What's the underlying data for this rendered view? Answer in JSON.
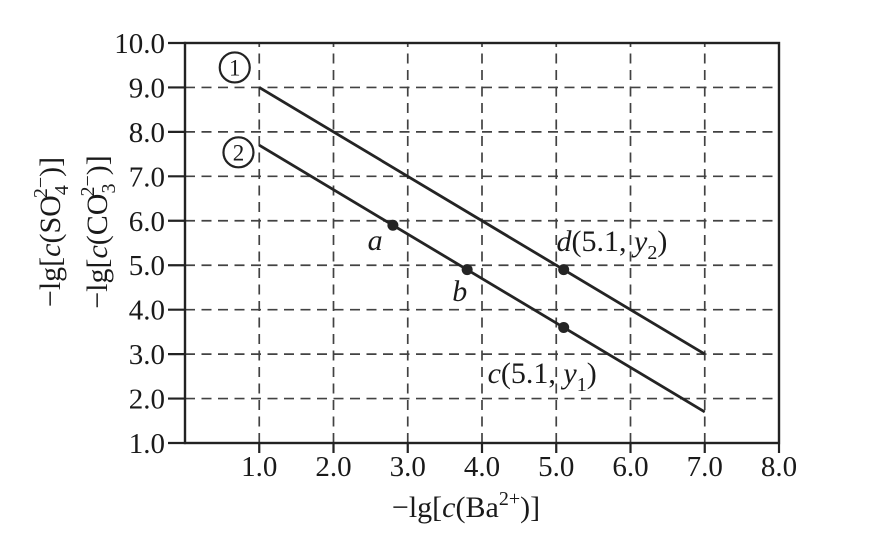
{
  "figure": {
    "background": "#ffffff",
    "ink_color": "#222222",
    "grid_color": "#424242"
  },
  "chart_data": {
    "type": "line",
    "title": "",
    "xlabel": "−lg[c(Ba²⁺)]",
    "xlabel_segments": [
      {
        "t": "−lg["
      },
      {
        "t": "c",
        "i": true
      },
      {
        "t": "(Ba"
      },
      {
        "t": "2+",
        "shift": "sup"
      },
      {
        "t": ")]"
      }
    ],
    "ylabels": [
      {
        "text": "−lg[c(SO₄²⁻)]",
        "segments": [
          {
            "t": "−lg["
          },
          {
            "t": "c",
            "i": true
          },
          {
            "t": "(SO"
          },
          {
            "stack": true,
            "sub": "4",
            "sup": "2−"
          },
          {
            "t": ")]"
          }
        ]
      },
      {
        "text": "−lg[c(CO₃²⁻)]",
        "segments": [
          {
            "t": "−lg["
          },
          {
            "t": "c",
            "i": true
          },
          {
            "t": "(CO"
          },
          {
            "stack": true,
            "sub": "3",
            "sup": "2−"
          },
          {
            "t": ")]"
          }
        ]
      }
    ],
    "xlim": [
      0,
      8
    ],
    "ylim": [
      1,
      10
    ],
    "grid": true,
    "grid_style": "dashed",
    "legend_position": "none",
    "xtick_labels": [
      "1.0",
      "2.0",
      "3.0",
      "4.0",
      "5.0",
      "6.0",
      "7.0",
      "8.0"
    ],
    "xtick_values": [
      1,
      2,
      3,
      4,
      5,
      6,
      7,
      8
    ],
    "ytick_labels": [
      "1.0",
      "2.0",
      "3.0",
      "4.0",
      "5.0",
      "6.0",
      "7.0",
      "8.0",
      "9.0",
      "10.0"
    ],
    "ytick_values": [
      1,
      2,
      3,
      4,
      5,
      6,
      7,
      8,
      9,
      10
    ],
    "series": [
      {
        "name": "1",
        "label_style": "circled-number",
        "x": [
          1.0,
          7.0
        ],
        "y": [
          9.0,
          3.0
        ],
        "label_pos": [
          0.67,
          9.45
        ]
      },
      {
        "name": "2",
        "label_style": "circled-number",
        "x": [
          1.0,
          7.0
        ],
        "y": [
          7.7,
          1.7
        ],
        "label_pos": [
          0.72,
          7.54
        ]
      }
    ],
    "points": [
      {
        "name": "a",
        "x": 2.8,
        "y": 5.9,
        "on_series": "2"
      },
      {
        "name": "b",
        "x": 3.8,
        "y": 4.9,
        "on_series": "2"
      },
      {
        "name": "c",
        "x": 5.1,
        "y": 3.6,
        "on_series": "2"
      },
      {
        "name": "d",
        "x": 5.1,
        "y": 4.9,
        "on_series": "1"
      }
    ],
    "annotations": [
      {
        "name": "point-label-a",
        "text": "a",
        "x": 2.56,
        "y": 5.57,
        "segments": [
          {
            "t": "a",
            "i": true
          }
        ]
      },
      {
        "name": "point-label-b",
        "text": "b",
        "x": 3.7,
        "y": 4.42,
        "segments": [
          {
            "t": "b",
            "i": true
          }
        ]
      },
      {
        "name": "point-label-c",
        "text": "c(5.1, y₁)",
        "x": 4.81,
        "y": 2.57,
        "segments": [
          {
            "t": "c",
            "i": true
          },
          {
            "t": "(5.1, "
          },
          {
            "t": "y",
            "i": true
          },
          {
            "t": "1",
            "shift": "sub"
          },
          {
            "t": ")"
          }
        ]
      },
      {
        "name": "point-label-d",
        "text": "d(5.1, y₂)",
        "x": 5.75,
        "y": 5.54,
        "segments": [
          {
            "t": "d",
            "i": true
          },
          {
            "t": "(5.1, "
          },
          {
            "t": "y",
            "i": true
          },
          {
            "t": "2",
            "shift": "sub"
          },
          {
            "t": ")"
          }
        ]
      }
    ]
  }
}
